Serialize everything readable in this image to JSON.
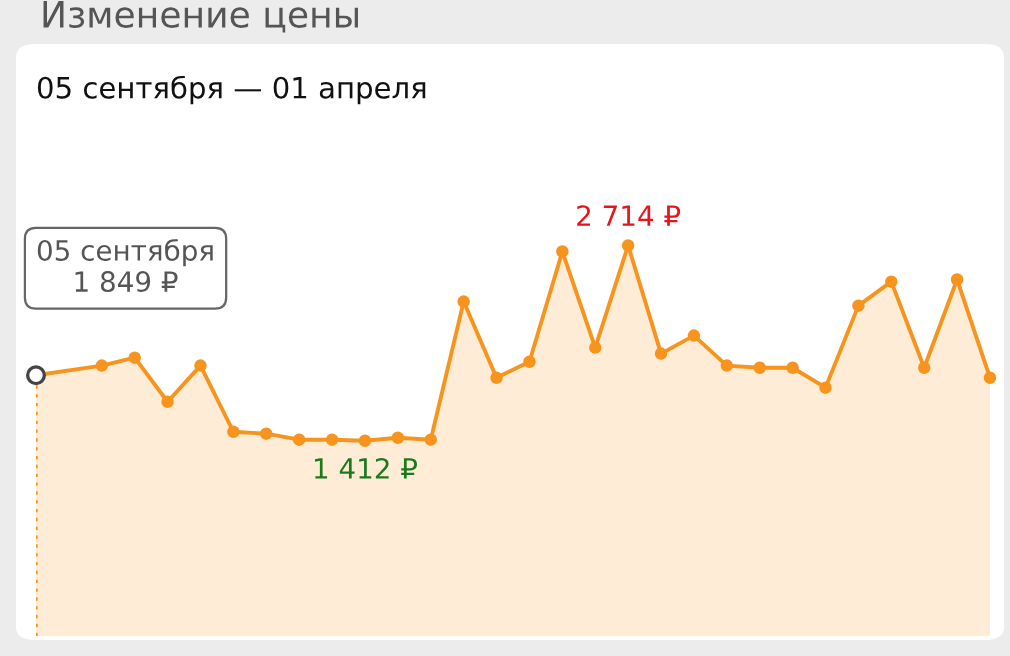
{
  "chart_data": {
    "type": "area",
    "title": "Изменение цены",
    "subtitle": "05 сентября — 01 апреля",
    "categories": [
      null,
      null,
      null,
      null,
      null,
      null,
      null,
      null,
      null,
      null,
      null,
      null,
      null,
      null,
      null,
      null,
      null,
      null,
      null,
      null,
      null,
      null,
      null,
      null,
      null,
      null,
      null,
      null,
      null,
      null
    ],
    "series": [
      {
        "color": "#f7941d",
        "values": [
          1849,
          null,
          1913,
          1966,
          1672,
          1913,
          1472,
          1459,
          1419,
          1419,
          1412,
          1432,
          1419,
          2340,
          1832,
          1939,
          2674,
          2033,
          2714,
          1993,
          2113,
          1913,
          1899,
          1899,
          1766,
          2313,
          2473,
          1899,
          2487,
          1832
        ],
        "value_labels": [
          "1 849 ₽",
          null,
          null,
          null,
          null,
          null,
          null,
          null,
          null,
          null,
          "1 412 ₽",
          null,
          null,
          null,
          null,
          null,
          null,
          null,
          "2 714 ₽",
          null,
          null,
          null,
          null,
          null,
          null,
          null,
          null,
          null,
          null,
          null
        ]
      }
    ],
    "marker": "circle",
    "line_style": "solid",
    "annotations": [
      "05 сентября"
    ]
  }
}
